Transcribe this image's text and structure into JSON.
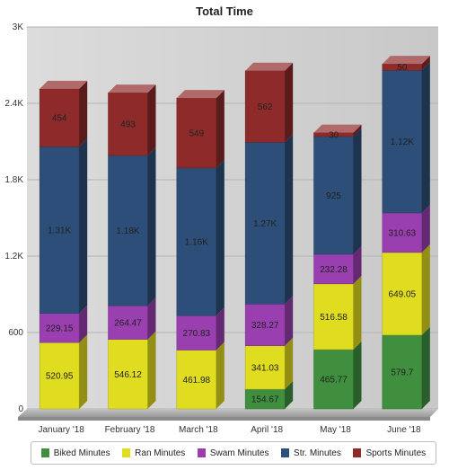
{
  "chart_data": {
    "type": "bar",
    "stacked": true,
    "title": "Total Time",
    "categories": [
      "January '18",
      "February '18",
      "March '18",
      "April '18",
      "May '18",
      "June '18"
    ],
    "series": [
      {
        "name": "Biked Minutes",
        "color": "#3f8f3f",
        "values": [
          0,
          0,
          0,
          154.67,
          465.77,
          579.7
        ],
        "labels": [
          "",
          "",
          "",
          "154.67",
          "465.77",
          "579.7"
        ]
      },
      {
        "name": "Ran Minutes",
        "color": "#e0dc1f",
        "values": [
          520.95,
          546.12,
          461.98,
          341.03,
          516.58,
          649.05
        ],
        "labels": [
          "520.95",
          "546.12",
          "461.98",
          "341.03",
          "516.58",
          "649.05"
        ]
      },
      {
        "name": "Swam Minutes",
        "color": "#9a3fb0",
        "values": [
          229.15,
          264.47,
          270.83,
          328.27,
          232.28,
          310.63
        ],
        "labels": [
          "229.15",
          "264.47",
          "270.83",
          "328.27",
          "232.28",
          "310.63"
        ]
      },
      {
        "name": "Str. Minutes",
        "color": "#2c4e78",
        "values": [
          1310,
          1180,
          1160,
          1270,
          925,
          1120
        ],
        "labels": [
          "1.31K",
          "1.18K",
          "1.16K",
          "1.27K",
          "925",
          "1.12K"
        ]
      },
      {
        "name": "Sports Minutes",
        "color": "#8e2a2a",
        "values": [
          454,
          493,
          549,
          562,
          30,
          50
        ],
        "labels": [
          "454",
          "493",
          "549",
          "562",
          "30",
          "50"
        ]
      }
    ],
    "ylim": [
      0,
      3000
    ],
    "yticks": [
      0,
      600,
      1200,
      1800,
      2400,
      3000
    ],
    "ytick_labels": [
      "0",
      "600",
      "1.2K",
      "1.8K",
      "2.4K",
      "3K"
    ],
    "grid": true,
    "legend": "bottom"
  }
}
